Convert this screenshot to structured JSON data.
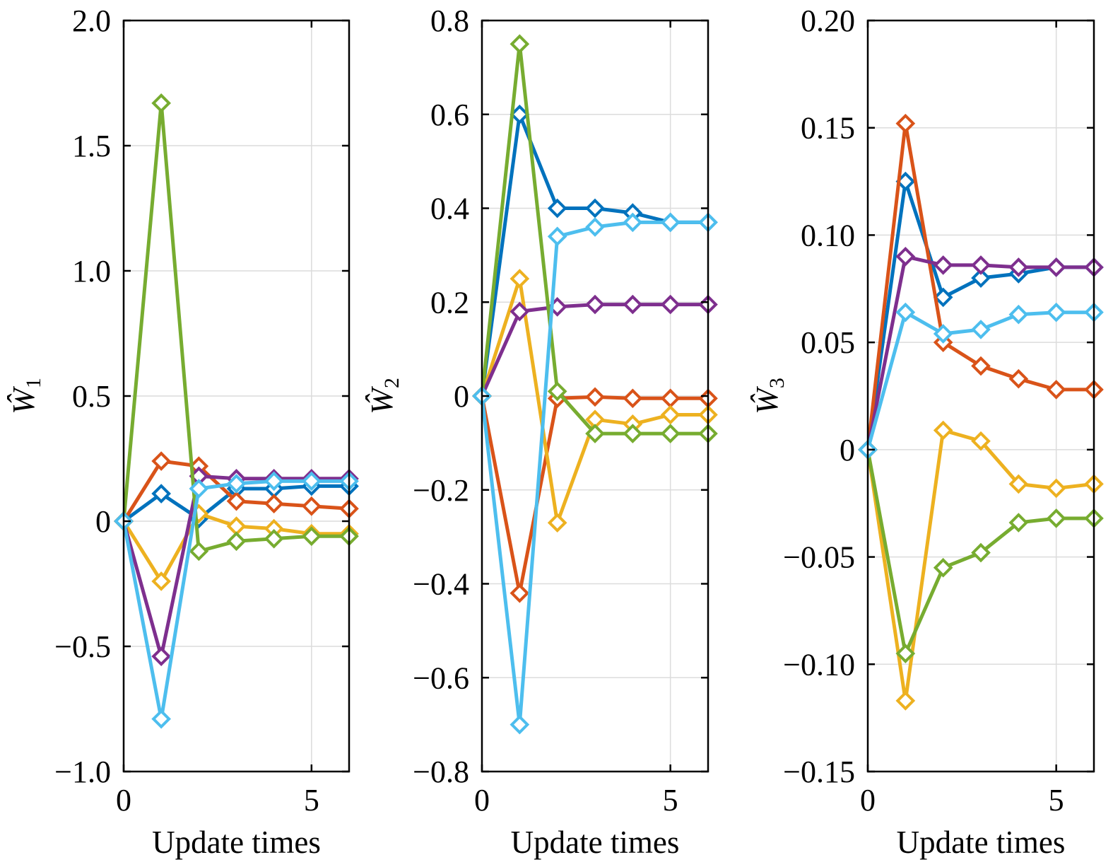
{
  "colors": {
    "blue": "#0072BD",
    "orange": "#D95319",
    "yellow": "#EDB120",
    "purple": "#7E2F8E",
    "green": "#77AC30",
    "cyan": "#4DBEEE",
    "grid": "#dcdcdc",
    "axis": "#000000"
  },
  "chart_data": [
    {
      "type": "line",
      "marker": "diamond",
      "xlabel": "Update times",
      "ylabel": {
        "base": "Ŵ",
        "sub": "1"
      },
      "xlim": [
        0,
        6
      ],
      "ylim": [
        -1.0,
        2.0
      ],
      "xticks": [
        0,
        5
      ],
      "xtick_labels": [
        "0",
        "5"
      ],
      "yticks": [
        -1.0,
        -0.5,
        0,
        0.5,
        1.0,
        1.5,
        2.0
      ],
      "ytick_labels": [
        "−1.0",
        "−0.5",
        "0",
        "0.5",
        "1.0",
        "1.5",
        "2.0"
      ],
      "grid": true,
      "x": [
        0,
        1,
        2,
        3,
        4,
        5,
        6
      ],
      "series": [
        {
          "color": "blue",
          "values": [
            0,
            0.11,
            0.01,
            0.13,
            0.13,
            0.14,
            0.14
          ]
        },
        {
          "color": "orange",
          "values": [
            0,
            0.24,
            0.22,
            0.08,
            0.07,
            0.06,
            0.05
          ]
        },
        {
          "color": "yellow",
          "values": [
            0,
            -0.24,
            0.03,
            -0.02,
            -0.03,
            -0.05,
            -0.05
          ]
        },
        {
          "color": "purple",
          "values": [
            0,
            -0.54,
            0.18,
            0.17,
            0.17,
            0.17,
            0.17
          ]
        },
        {
          "color": "green",
          "values": [
            0,
            1.67,
            -0.12,
            -0.08,
            -0.07,
            -0.06,
            -0.06
          ]
        },
        {
          "color": "cyan",
          "values": [
            0,
            -0.79,
            0.13,
            0.15,
            0.16,
            0.16,
            0.16
          ]
        }
      ]
    },
    {
      "type": "line",
      "marker": "diamond",
      "xlabel": "Update times",
      "ylabel": {
        "base": "Ŵ",
        "sub": "2"
      },
      "xlim": [
        0,
        6
      ],
      "ylim": [
        -0.8,
        0.8
      ],
      "xticks": [
        0,
        5
      ],
      "xtick_labels": [
        "0",
        "5"
      ],
      "yticks": [
        -0.8,
        -0.6,
        -0.4,
        -0.2,
        0,
        0.2,
        0.4,
        0.6,
        0.8
      ],
      "ytick_labels": [
        "−0.8",
        "−0.6",
        "−0.4",
        "−0.2",
        "0",
        "0.2",
        "0.4",
        "0.6",
        "0.8"
      ],
      "grid": true,
      "x": [
        0,
        1,
        2,
        3,
        4,
        5,
        6
      ],
      "series": [
        {
          "color": "blue",
          "values": [
            0,
            0.6,
            0.4,
            0.4,
            0.39,
            0.37,
            0.37
          ]
        },
        {
          "color": "orange",
          "values": [
            0,
            -0.42,
            -0.005,
            -0.002,
            -0.005,
            -0.005,
            -0.005
          ]
        },
        {
          "color": "yellow",
          "values": [
            0,
            0.25,
            -0.27,
            -0.05,
            -0.06,
            -0.04,
            -0.04
          ]
        },
        {
          "color": "purple",
          "values": [
            0,
            0.18,
            0.19,
            0.195,
            0.195,
            0.195,
            0.195
          ]
        },
        {
          "color": "green",
          "values": [
            0,
            0.75,
            0.01,
            -0.08,
            -0.08,
            -0.08,
            -0.08
          ]
        },
        {
          "color": "cyan",
          "values": [
            0,
            -0.7,
            0.34,
            0.36,
            0.37,
            0.37,
            0.37
          ]
        }
      ]
    },
    {
      "type": "line",
      "marker": "diamond",
      "xlabel": "Update times",
      "ylabel": {
        "base": "Ŵ",
        "sub": "3"
      },
      "xlim": [
        0,
        6
      ],
      "ylim": [
        -0.15,
        0.2
      ],
      "xticks": [
        0,
        5
      ],
      "xtick_labels": [
        "0",
        "5"
      ],
      "yticks": [
        -0.15,
        -0.1,
        -0.05,
        0,
        0.05,
        0.1,
        0.15,
        0.2
      ],
      "ytick_labels": [
        "−0.15",
        "−0.10",
        "−0.05",
        "0",
        "0.05",
        "0.10",
        "0.15",
        "0.20"
      ],
      "grid": true,
      "x": [
        0,
        1,
        2,
        3,
        4,
        5,
        6
      ],
      "series": [
        {
          "color": "blue",
          "values": [
            0,
            0.125,
            0.071,
            0.08,
            0.082,
            0.085,
            0.085
          ]
        },
        {
          "color": "orange",
          "values": [
            0,
            0.152,
            0.05,
            0.039,
            0.033,
            0.028,
            0.028
          ]
        },
        {
          "color": "yellow",
          "values": [
            0,
            -0.117,
            0.009,
            0.004,
            -0.016,
            -0.018,
            -0.016
          ]
        },
        {
          "color": "purple",
          "values": [
            0,
            0.09,
            0.086,
            0.086,
            0.085,
            0.085,
            0.085
          ]
        },
        {
          "color": "green",
          "values": [
            0,
            -0.095,
            -0.055,
            -0.048,
            -0.034,
            -0.032,
            -0.032
          ]
        },
        {
          "color": "cyan",
          "values": [
            0,
            0.064,
            0.054,
            0.056,
            0.063,
            0.064,
            0.064
          ]
        }
      ]
    }
  ]
}
